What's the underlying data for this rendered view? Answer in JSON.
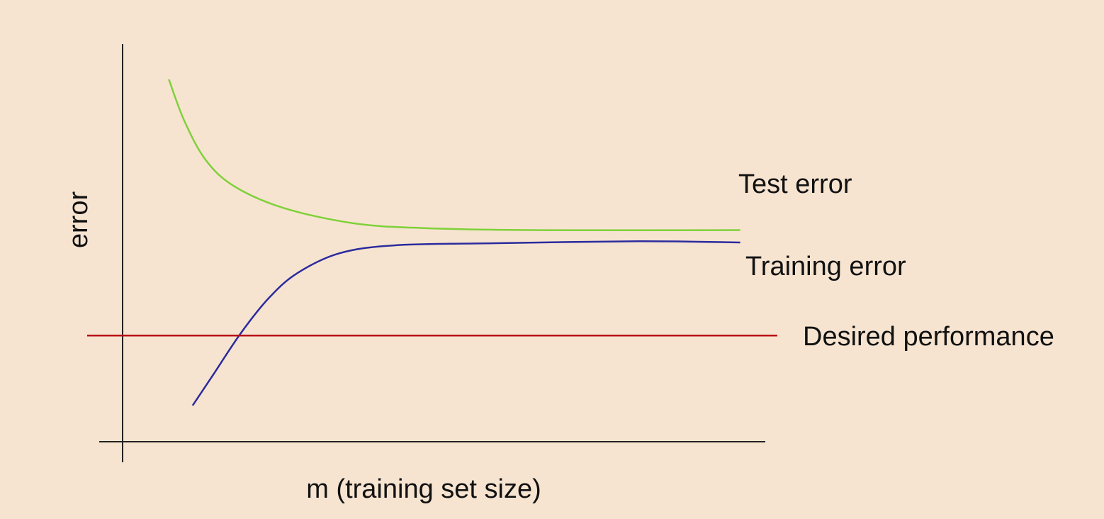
{
  "chart_data": {
    "type": "line",
    "x_label": "m (training set size)",
    "y_label": "error",
    "xlim": [
      0,
      100
    ],
    "ylim": [
      0,
      100
    ],
    "series": [
      {
        "name": "Test error",
        "color": "#7ed13a",
        "x": [
          7.2,
          9.6,
          12.9,
          17.3,
          25.0,
          36.0,
          47.0,
          63.6,
          96.1
        ],
        "values": [
          91.1,
          80.7,
          70.9,
          64.3,
          58.8,
          54.9,
          53.7,
          53.2,
          53.2
        ]
      },
      {
        "name": "Training error",
        "color": "#2b2b9e",
        "x": [
          10.9,
          14.0,
          18.4,
          22.8,
          27.2,
          33.8,
          42.6,
          58.1,
          80.2,
          96.1
        ],
        "values": [
          9.1,
          16.6,
          27.3,
          36.2,
          42.4,
          47.4,
          49.4,
          49.9,
          50.4,
          50.1
        ]
      }
    ],
    "hlines": [
      {
        "name": "Desired performance",
        "color": "#b80f16",
        "value": 26.7
      }
    ]
  }
}
